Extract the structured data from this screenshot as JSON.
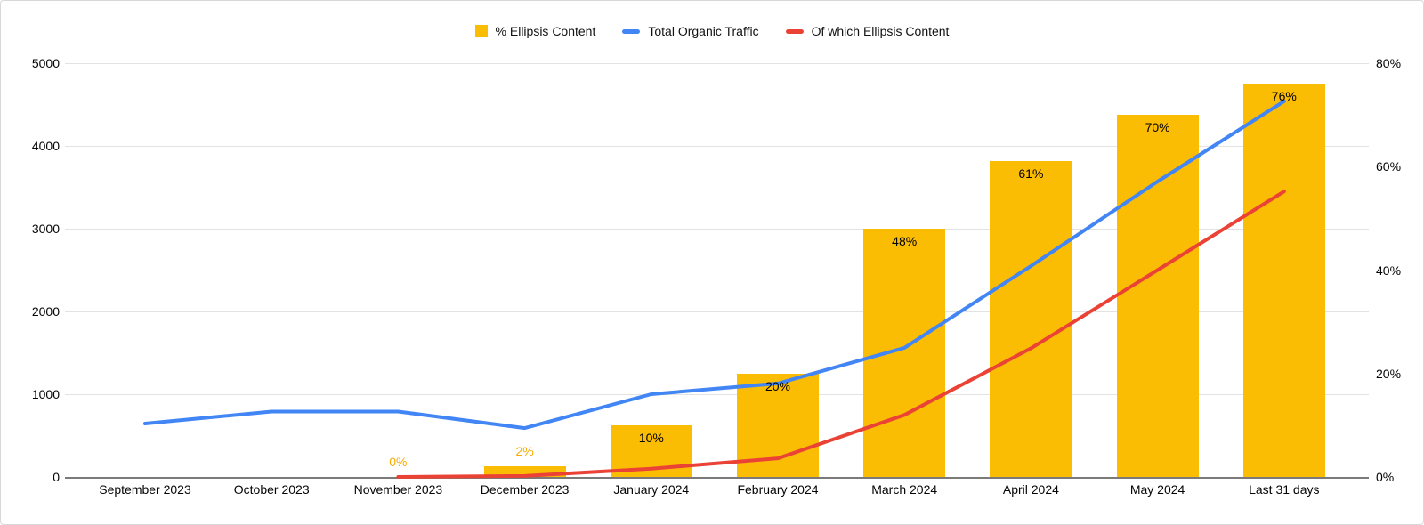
{
  "legend": {
    "items": [
      {
        "label": "% Ellipsis Content",
        "swatch": "square",
        "color": "#FBBC04"
      },
      {
        "label": "Total Organic Traffic",
        "swatch": "dash",
        "color": "#4285F4"
      },
      {
        "label": "Of which Ellipsis Content",
        "swatch": "dash",
        "color": "#EA4335"
      }
    ]
  },
  "colors": {
    "bar": "#FBBC04",
    "blue_line": "#4285F4",
    "red_line": "#EA4335",
    "gridline": "#e3e3e3",
    "baseline": "#7a7a7a",
    "outside_label": "#F9AB00"
  },
  "chart_data": {
    "type": "combo",
    "title": "",
    "categories": [
      "September 2023",
      "October 2023",
      "November 2023",
      "December 2023",
      "January 2024",
      "February 2024",
      "March 2024",
      "April 2024",
      "May 2024",
      "Last 31 days"
    ],
    "series": [
      {
        "name": "% Ellipsis Content",
        "type": "bar",
        "axis": "right",
        "unit": "%",
        "color": "#FBBC04",
        "values": [
          null,
          null,
          0,
          2,
          10,
          20,
          48,
          61,
          70,
          76
        ],
        "data_labels": [
          null,
          null,
          "0%",
          "2%",
          "10%",
          "20%",
          "48%",
          "61%",
          "70%",
          "76%"
        ]
      },
      {
        "name": "Total Organic Traffic",
        "type": "line",
        "axis": "left",
        "color": "#4285F4",
        "values": [
          645,
          790,
          790,
          590,
          1000,
          1130,
          1560,
          2550,
          3570,
          4540
        ]
      },
      {
        "name": "Of which Ellipsis Content",
        "type": "line",
        "axis": "left",
        "color": "#EA4335",
        "values": [
          null,
          null,
          0,
          12,
          100,
          225,
          750,
          1555,
          2500,
          3450
        ]
      }
    ],
    "left_axis": {
      "min": 0,
      "max": 5000,
      "tick_labels": [
        "0",
        "1000",
        "2000",
        "3000",
        "4000",
        "5000"
      ]
    },
    "right_axis": {
      "min": 0,
      "max": 80,
      "tick_labels": [
        "0%",
        "20%",
        "40%",
        "60%",
        "80%"
      ]
    },
    "legend_position": "top",
    "grid": true
  }
}
